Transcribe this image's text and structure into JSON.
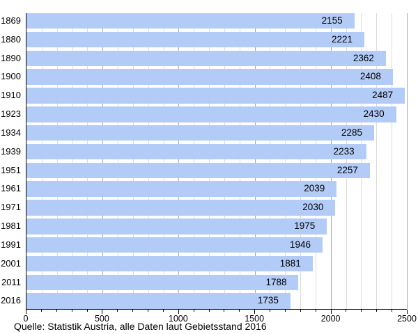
{
  "chart_data": {
    "type": "bar",
    "orientation": "horizontal",
    "title": "",
    "xlabel": "",
    "ylabel": "",
    "categories": [
      "1869",
      "1880",
      "1890",
      "1900",
      "1910",
      "1923",
      "1934",
      "1939",
      "1951",
      "1961",
      "1971",
      "1981",
      "1991",
      "2001",
      "2011",
      "2016"
    ],
    "values": [
      2155,
      2221,
      2362,
      2408,
      2487,
      2430,
      2285,
      2233,
      2257,
      2039,
      2030,
      1975,
      1946,
      1881,
      1788,
      1735
    ],
    "xlim": [
      0,
      2500
    ],
    "x_major_ticks": [
      0,
      500,
      1000,
      1500,
      2000,
      2500
    ],
    "x_minor_step": 100,
    "grid": true,
    "value_label_position": "inside-right",
    "legend": "none"
  },
  "colors": {
    "bar": "#b3cbf7",
    "grid_minor": "#dcdcdc",
    "grid_major": "#a6a6a6",
    "axis": "#000000",
    "text": "#000000"
  },
  "source_note": "Quelle: Statistik Austria, alle Daten laut Gebietsstand 2016"
}
